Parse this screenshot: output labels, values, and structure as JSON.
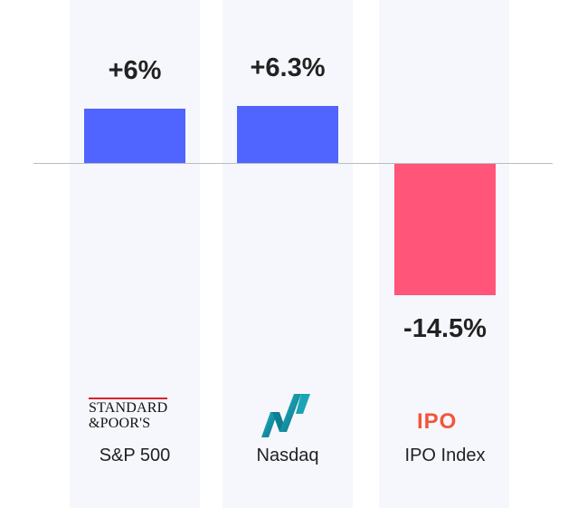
{
  "chart_data": {
    "type": "bar",
    "categories": [
      "S&P 500",
      "Nasdaq",
      "IPO Index"
    ],
    "values": [
      6,
      6.3,
      -14.5
    ],
    "value_labels": [
      "+6%",
      "+6.3%",
      "-14.5%"
    ],
    "title": "",
    "xlabel": "",
    "ylabel": "",
    "ylim": [
      -14.5,
      6.3
    ],
    "grid": false,
    "colors": {
      "positive": "#5064ff",
      "negative": "#ff5578"
    }
  },
  "logos": {
    "sp_line1": "STANDARD",
    "sp_line2": "&POOR'S",
    "nasdaq_icon": "nasdaq-logo-icon",
    "ipo_text": "IPO"
  }
}
